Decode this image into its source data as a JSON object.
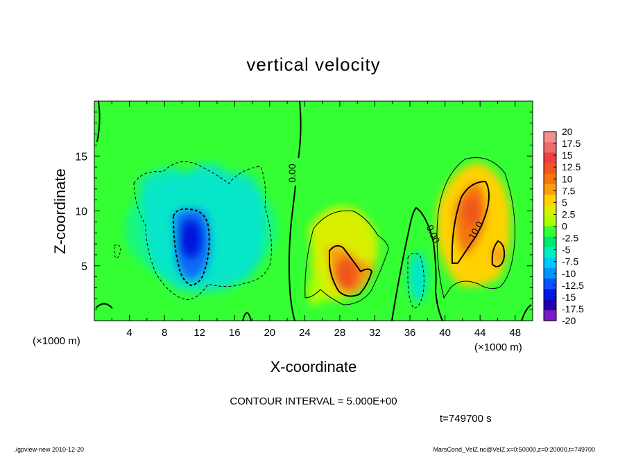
{
  "chart_data": {
    "type": "heatmap",
    "title": "vertical velocity",
    "xlabel": "X-coordinate",
    "ylabel": "Z-coordinate",
    "x_unit_left": "(×1000 m)",
    "x_unit_right": "(×1000 m)",
    "xlim": [
      0,
      50
    ],
    "ylim": [
      0,
      20
    ],
    "x_ticks": [
      "4",
      "8",
      "12",
      "16",
      "20",
      "24",
      "28",
      "32",
      "36",
      "40",
      "44",
      "48"
    ],
    "y_ticks": [
      "5",
      "10",
      "15"
    ],
    "contour_interval_text": "CONTOUR INTERVAL = 5.000E+00",
    "time_text": "t=749700 s",
    "contour_labels": [
      "0.00",
      "0.00",
      "10.0"
    ],
    "colorbar": {
      "levels": [
        "20",
        "17.5",
        "15",
        "12.5",
        "10",
        "7.5",
        "5",
        "2.5",
        "0",
        "-2.5",
        "-5",
        "-7.5",
        "-10",
        "-12.5",
        "-15",
        "-17.5",
        "-20"
      ],
      "colors": [
        "#f28f8f",
        "#f06c6c",
        "#ee4040",
        "#f0561e",
        "#f4760c",
        "#f99f0a",
        "#ffd200",
        "#d8f000",
        "#b0ff00",
        "#33ff33",
        "#00e870",
        "#00f0c0",
        "#00c8ff",
        "#0096ff",
        "#0a50ff",
        "#0018e0",
        "#2000b0",
        "#7a1ac8"
      ]
    },
    "features": [
      {
        "kind": "downdraft",
        "x": 11,
        "z": 7,
        "min_value": -12.5
      },
      {
        "kind": "updraft",
        "x": 29,
        "z": 5,
        "max_value": 12.5
      },
      {
        "kind": "updraft",
        "x": 43.5,
        "z": 9,
        "max_value": 12.5
      },
      {
        "kind": "downdraft",
        "x": 37,
        "z": 3,
        "min_value": -7.5
      }
    ]
  },
  "footer": {
    "left": "./gpview-new   2010-12-20",
    "right": "MarsCond_VelZ.nc@VelZ,x=0:50000,z=0:20000,t=749700"
  }
}
